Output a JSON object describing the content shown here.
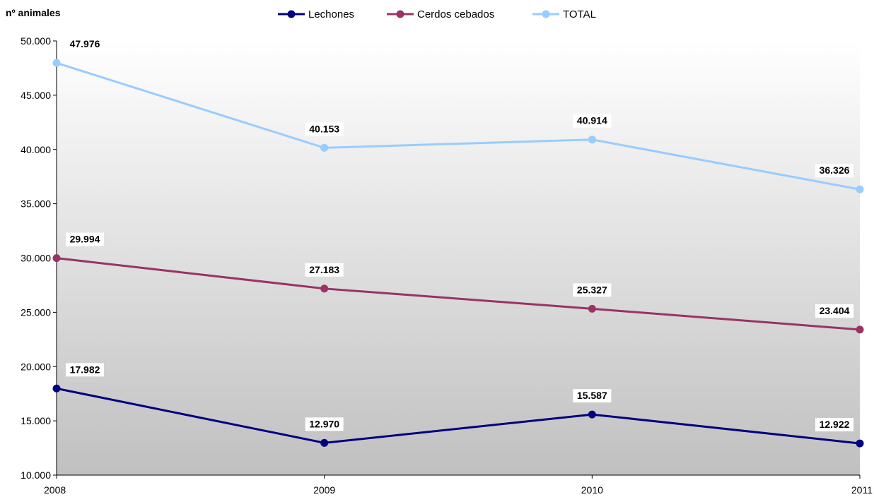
{
  "chart_data": {
    "type": "line",
    "ylabel": "nº animales",
    "xlabel": "",
    "title": "",
    "categories": [
      "2008",
      "2009",
      "2010",
      "2011"
    ],
    "ylim": [
      10000,
      50000
    ],
    "ytick_step": 5000,
    "yticks": [
      "10.000",
      "15.000",
      "20.000",
      "25.000",
      "30.000",
      "35.000",
      "40.000",
      "45.000",
      "50.000"
    ],
    "grid": false,
    "legend_position": "top-center",
    "series": [
      {
        "name": "Lechones",
        "color": "#000080",
        "values": [
          17982,
          12970,
          15587,
          12922
        ],
        "labels": [
          "17.982",
          "12.970",
          "15.587",
          "12.922"
        ]
      },
      {
        "name": "Cerdos cebados",
        "color": "#993366",
        "values": [
          29994,
          27183,
          25327,
          23404
        ],
        "labels": [
          "29.994",
          "27.183",
          "25.327",
          "23.404"
        ]
      },
      {
        "name": "TOTAL",
        "color": "#99CCFF",
        "values": [
          47976,
          40153,
          40914,
          36326
        ],
        "labels": [
          "47.976",
          "40.153",
          "40.914",
          "36.326"
        ]
      }
    ]
  }
}
